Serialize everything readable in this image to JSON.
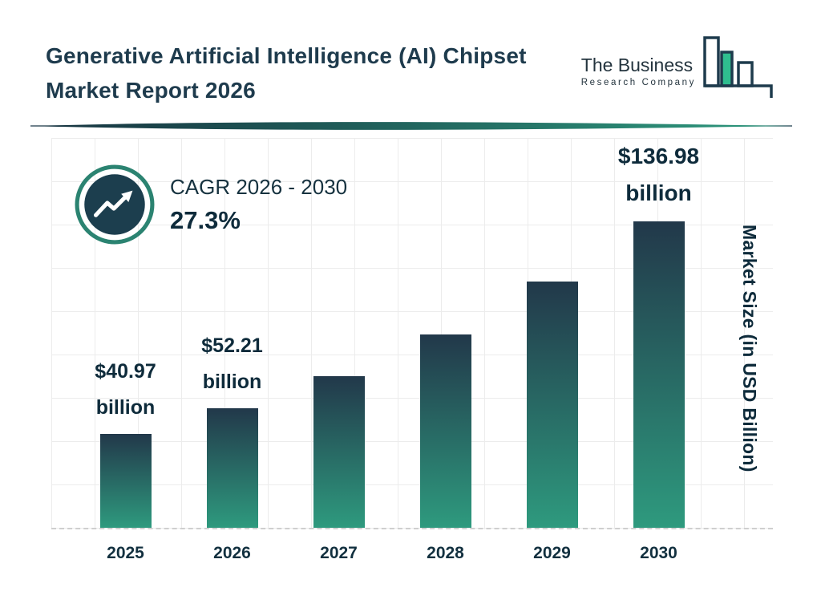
{
  "header": {
    "title_line1": "Generative Artificial Intelligence (AI) Chipset",
    "title_line2": "Market Report 2026",
    "logo": {
      "name_line1": "The Business",
      "name_line2": "Research Company"
    }
  },
  "cagr_badge": {
    "label": "CAGR 2026 - 2030",
    "value": "27.3%"
  },
  "chart_data": {
    "type": "bar",
    "title": "Generative Artificial Intelligence (AI) Chipset Market Report 2026",
    "categories": [
      "2025",
      "2026",
      "2027",
      "2028",
      "2029",
      "2030"
    ],
    "values": [
      40.97,
      52.21,
      66.5,
      84.6,
      107.7,
      136.98
    ],
    "display_values": [
      "$40.97",
      "$52.21",
      "",
      "",
      "",
      "$136.98"
    ],
    "unit_word": "billion",
    "value_labels_shown": [
      "$40.97 billion",
      "$52.21 billion",
      "$136.98 billion"
    ],
    "xlabel": "",
    "ylabel": "Market Size (in USD Billion)",
    "ylim": [
      0,
      140
    ],
    "grid": true,
    "legend": false,
    "bar_gradient": [
      "#22384a",
      "#2e9a7e"
    ],
    "cagr_annotation": "CAGR 2026 - 2030: 27.3%"
  },
  "colors": {
    "title_text": "#1e3b4d",
    "label_text": "#0e2b3b",
    "accent_teal": "#2e9a7e",
    "badge_fill": "#1c3e4e",
    "badge_ring": "#2b8371",
    "grid_line": "#ececec",
    "logo_green": "#2fbe8f"
  }
}
